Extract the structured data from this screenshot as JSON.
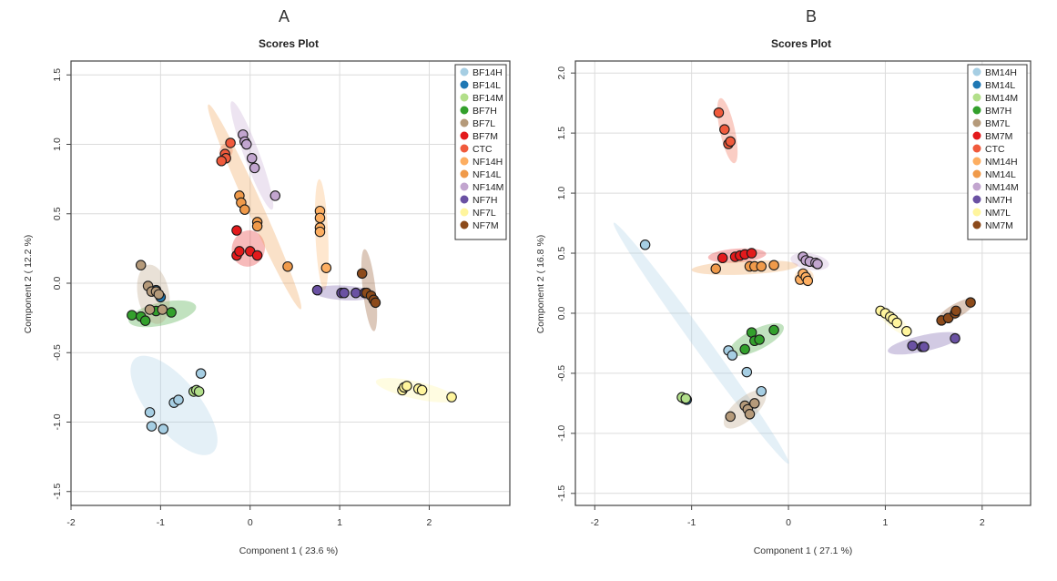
{
  "chart_data": [
    {
      "type": "scatter",
      "panel_label": "A",
      "title": "Scores Plot",
      "xlabel": "Component 1 ( 23.6 %)",
      "ylabel": "Component 2 ( 12.2 %)",
      "xlim": [
        -2.0,
        2.9
      ],
      "ylim": [
        -1.6,
        1.6
      ],
      "xticks": [
        -2,
        -1,
        0,
        1,
        2
      ],
      "yticks": [
        -1.5,
        -1.0,
        -0.5,
        0.0,
        0.5,
        1.0,
        1.5
      ],
      "xtick_labels": [
        "-2",
        "-1",
        "0",
        "1",
        "2"
      ],
      "ytick_labels": [
        "-1.5",
        "-1.0",
        "-0.5",
        "0.0",
        "0.5",
        "1.0",
        "1.5"
      ],
      "grid": true,
      "legend_position": "top-right",
      "series": [
        {
          "name": "BF14H",
          "color": "#a6cee3",
          "points": [
            [
              -1.12,
              -0.93
            ],
            [
              -1.1,
              -1.03
            ],
            [
              -0.97,
              -1.05
            ],
            [
              -0.85,
              -0.86
            ],
            [
              -0.8,
              -0.84
            ],
            [
              -0.55,
              -0.65
            ],
            [
              -0.58,
              -0.78
            ]
          ],
          "ellipse": {
            "cx": -0.85,
            "cy": -0.88,
            "rx": 0.55,
            "ry": 0.17,
            "angle": -38
          }
        },
        {
          "name": "BF14L",
          "color": "#1f78b4",
          "points": [
            [
              -1.05,
              -0.05
            ],
            [
              -1.0,
              -0.1
            ]
          ],
          "ellipse": null
        },
        {
          "name": "BF14M",
          "color": "#b2df8a",
          "points": [
            [
              -0.63,
              -0.78
            ],
            [
              -0.6,
              -0.77
            ],
            [
              -0.57,
              -0.78
            ]
          ],
          "ellipse": null
        },
        {
          "name": "BF7H",
          "color": "#33a02c",
          "points": [
            [
              -1.32,
              -0.23
            ],
            [
              -1.22,
              -0.24
            ],
            [
              -1.17,
              -0.27
            ],
            [
              -1.05,
              -0.2
            ],
            [
              -0.88,
              -0.21
            ]
          ],
          "ellipse": {
            "cx": -0.98,
            "cy": -0.22,
            "rx": 0.38,
            "ry": 0.05,
            "angle": 8
          }
        },
        {
          "name": "BF7L",
          "color": "#b59a7a",
          "points": [
            [
              -1.22,
              0.13
            ],
            [
              -1.14,
              -0.02
            ],
            [
              -1.1,
              -0.06
            ],
            [
              -1.05,
              -0.06
            ],
            [
              -1.02,
              -0.08
            ],
            [
              -1.12,
              -0.19
            ],
            [
              -0.98,
              -0.19
            ]
          ],
          "ellipse": {
            "cx": -1.08,
            "cy": -0.08,
            "rx": 0.22,
            "ry": 0.12,
            "angle": -75
          }
        },
        {
          "name": "BF7M",
          "color": "#e31a1c",
          "points": [
            [
              -0.15,
              0.38
            ],
            [
              -0.15,
              0.2
            ],
            [
              -0.12,
              0.23
            ],
            [
              0.0,
              0.23
            ],
            [
              0.08,
              0.2
            ]
          ],
          "ellipse": {
            "cx": -0.02,
            "cy": 0.25,
            "rx": 0.18,
            "ry": 0.1,
            "angle": -10
          }
        },
        {
          "name": "CTC",
          "color": "#f05a3c",
          "points": [
            [
              -0.22,
              1.01
            ],
            [
              -0.28,
              0.93
            ],
            [
              -0.27,
              0.9
            ],
            [
              -0.32,
              0.88
            ]
          ],
          "ellipse": {
            "cx": -0.27,
            "cy": 0.95,
            "rx": 0.06,
            "ry": 0.02,
            "angle": 60
          }
        },
        {
          "name": "NF14H",
          "color": "#fdae61",
          "points": [
            [
              0.78,
              0.52
            ],
            [
              0.78,
              0.47
            ],
            [
              0.78,
              0.4
            ],
            [
              0.78,
              0.37
            ],
            [
              0.85,
              0.11
            ]
          ],
          "ellipse": {
            "cx": 0.8,
            "cy": 0.35,
            "rx": 0.4,
            "ry": 0.02,
            "angle": -86
          }
        },
        {
          "name": "NF14L",
          "color": "#f09a4a",
          "points": [
            [
              -0.12,
              0.63
            ],
            [
              -0.1,
              0.58
            ],
            [
              -0.06,
              0.53
            ],
            [
              0.08,
              0.44
            ],
            [
              0.08,
              0.41
            ],
            [
              0.42,
              0.12
            ]
          ],
          "ellipse": {
            "cx": 0.05,
            "cy": 0.55,
            "rx": 0.9,
            "ry": 0.03,
            "angle": -55
          }
        },
        {
          "name": "NF14M",
          "color": "#c2a5cf",
          "points": [
            [
              -0.08,
              1.07
            ],
            [
              -0.06,
              1.02
            ],
            [
              -0.04,
              1.0
            ],
            [
              0.02,
              0.9
            ],
            [
              0.05,
              0.83
            ],
            [
              0.28,
              0.63
            ]
          ],
          "ellipse": {
            "cx": 0.02,
            "cy": 0.92,
            "rx": 0.45,
            "ry": 0.03,
            "angle": -60
          }
        },
        {
          "name": "NF7H",
          "color": "#6a51a3",
          "points": [
            [
              0.75,
              -0.05
            ],
            [
              1.02,
              -0.07
            ],
            [
              1.05,
              -0.07
            ],
            [
              1.18,
              -0.07
            ],
            [
              1.28,
              -0.07
            ]
          ],
          "ellipse": {
            "cx": 1.05,
            "cy": -0.07,
            "rx": 0.35,
            "ry": 0.02,
            "angle": -2
          }
        },
        {
          "name": "NF7L",
          "color": "#fff59d",
          "points": [
            [
              1.7,
              -0.77
            ],
            [
              1.72,
              -0.75
            ],
            [
              1.75,
              -0.74
            ],
            [
              1.88,
              -0.76
            ],
            [
              1.92,
              -0.77
            ],
            [
              2.25,
              -0.82
            ]
          ],
          "ellipse": {
            "cx": 1.85,
            "cy": -0.77,
            "rx": 0.45,
            "ry": 0.03,
            "angle": -8
          }
        },
        {
          "name": "NF7M",
          "color": "#8c4a1a",
          "points": [
            [
              1.25,
              0.07
            ],
            [
              1.3,
              -0.07
            ],
            [
              1.35,
              -0.09
            ],
            [
              1.38,
              -0.12
            ],
            [
              1.4,
              -0.14
            ]
          ],
          "ellipse": {
            "cx": 1.33,
            "cy": -0.05,
            "rx": 0.3,
            "ry": 0.02,
            "angle": -80
          }
        }
      ]
    },
    {
      "type": "scatter",
      "panel_label": "B",
      "title": "Scores Plot",
      "xlabel": "Component 1 ( 27.1 %)",
      "ylabel": "Component 2 ( 16.8 %)",
      "xlim": [
        -2.2,
        2.5
      ],
      "ylim": [
        -1.6,
        2.1
      ],
      "xticks": [
        -2,
        -1,
        0,
        1,
        2
      ],
      "yticks": [
        -1.5,
        -1.0,
        -0.5,
        0.0,
        0.5,
        1.0,
        1.5,
        2.0
      ],
      "xtick_labels": [
        "-2",
        "-1",
        "0",
        "1",
        "2"
      ],
      "ytick_labels": [
        "-1.5",
        "-1.0",
        "-0.5",
        "0.0",
        "0.5",
        "1.0",
        "1.5",
        "2.0"
      ],
      "grid": true,
      "legend_position": "top-right",
      "series": [
        {
          "name": "BM14H",
          "color": "#a6cee3",
          "points": [
            [
              -1.48,
              0.57
            ],
            [
              -0.62,
              -0.31
            ],
            [
              -0.58,
              -0.35
            ],
            [
              -0.43,
              -0.49
            ],
            [
              -0.28,
              -0.65
            ]
          ],
          "ellipse": {
            "cx": -0.9,
            "cy": -0.25,
            "rx": 1.35,
            "ry": 0.03,
            "angle": -48
          }
        },
        {
          "name": "BM14L",
          "color": "#1f78b4",
          "points": [
            [
              -1.08,
              -0.71
            ],
            [
              -1.05,
              -0.72
            ]
          ],
          "ellipse": null
        },
        {
          "name": "BM14M",
          "color": "#b2df8a",
          "points": [
            [
              -1.1,
              -0.7
            ],
            [
              -1.06,
              -0.71
            ]
          ],
          "ellipse": null
        },
        {
          "name": "BM7H",
          "color": "#33a02c",
          "points": [
            [
              -0.45,
              -0.3
            ],
            [
              -0.38,
              -0.16
            ],
            [
              -0.35,
              -0.23
            ],
            [
              -0.3,
              -0.22
            ],
            [
              -0.15,
              -0.14
            ]
          ],
          "ellipse": {
            "cx": -0.33,
            "cy": -0.22,
            "rx": 0.3,
            "ry": 0.05,
            "angle": 22
          }
        },
        {
          "name": "BM7L",
          "color": "#b59a7a",
          "points": [
            [
              -0.6,
              -0.86
            ],
            [
              -0.45,
              -0.77
            ],
            [
              -0.42,
              -0.8
            ],
            [
              -0.4,
              -0.84
            ],
            [
              -0.35,
              -0.75
            ]
          ],
          "ellipse": {
            "cx": -0.45,
            "cy": -0.8,
            "rx": 0.25,
            "ry": 0.06,
            "angle": 35
          }
        },
        {
          "name": "BM7M",
          "color": "#e31a1c",
          "points": [
            [
              -0.68,
              0.46
            ],
            [
              -0.55,
              0.47
            ],
            [
              -0.5,
              0.48
            ],
            [
              -0.45,
              0.49
            ],
            [
              -0.38,
              0.5
            ]
          ],
          "ellipse": {
            "cx": -0.53,
            "cy": 0.48,
            "rx": 0.3,
            "ry": 0.02,
            "angle": 3
          }
        },
        {
          "name": "CTC",
          "color": "#f05a3c",
          "points": [
            [
              -0.72,
              1.67
            ],
            [
              -0.66,
              1.53
            ],
            [
              -0.62,
              1.41
            ],
            [
              -0.6,
              1.43
            ]
          ],
          "ellipse": {
            "cx": -0.63,
            "cy": 1.52,
            "rx": 0.28,
            "ry": 0.03,
            "angle": -75
          }
        },
        {
          "name": "NM14H",
          "color": "#fdae61",
          "points": [
            [
              0.12,
              0.28
            ],
            [
              0.15,
              0.33
            ],
            [
              0.18,
              0.3
            ],
            [
              0.2,
              0.27
            ]
          ],
          "ellipse": {
            "cx": 0.16,
            "cy": 0.3,
            "rx": 0.1,
            "ry": 0.03,
            "angle": 10
          }
        },
        {
          "name": "NM14L",
          "color": "#f09a4a",
          "points": [
            [
              -0.75,
              0.37
            ],
            [
              -0.4,
              0.39
            ],
            [
              -0.35,
              0.39
            ],
            [
              -0.28,
              0.39
            ],
            [
              -0.15,
              0.4
            ]
          ],
          "ellipse": {
            "cx": -0.45,
            "cy": 0.38,
            "rx": 0.55,
            "ry": 0.02,
            "angle": 2
          }
        },
        {
          "name": "NM14M",
          "color": "#c2a5cf",
          "points": [
            [
              0.15,
              0.47
            ],
            [
              0.18,
              0.44
            ],
            [
              0.22,
              0.43
            ],
            [
              0.28,
              0.42
            ],
            [
              0.3,
              0.41
            ]
          ],
          "ellipse": {
            "cx": 0.22,
            "cy": 0.43,
            "rx": 0.2,
            "ry": 0.03,
            "angle": -8
          }
        },
        {
          "name": "NM7H",
          "color": "#6a51a3",
          "points": [
            [
              1.28,
              -0.27
            ],
            [
              1.38,
              -0.28
            ],
            [
              1.4,
              -0.28
            ],
            [
              1.72,
              -0.21
            ]
          ],
          "ellipse": {
            "cx": 1.4,
            "cy": -0.25,
            "rx": 0.38,
            "ry": 0.03,
            "angle": 10
          }
        },
        {
          "name": "NM7L",
          "color": "#fff59d",
          "points": [
            [
              0.95,
              0.02
            ],
            [
              1.0,
              0.0
            ],
            [
              1.05,
              -0.03
            ],
            [
              1.08,
              -0.05
            ],
            [
              1.12,
              -0.08
            ],
            [
              1.22,
              -0.15
            ]
          ],
          "ellipse": {
            "cx": 1.08,
            "cy": -0.06,
            "rx": 0.2,
            "ry": 0.02,
            "angle": -35
          }
        },
        {
          "name": "NM7M",
          "color": "#8c4a1a",
          "points": [
            [
              1.58,
              -0.06
            ],
            [
              1.65,
              -0.04
            ],
            [
              1.72,
              0.0
            ],
            [
              1.73,
              0.02
            ],
            [
              1.88,
              0.09
            ]
          ],
          "ellipse": {
            "cx": 1.73,
            "cy": 0.02,
            "rx": 0.22,
            "ry": 0.02,
            "angle": 25
          }
        }
      ]
    }
  ]
}
